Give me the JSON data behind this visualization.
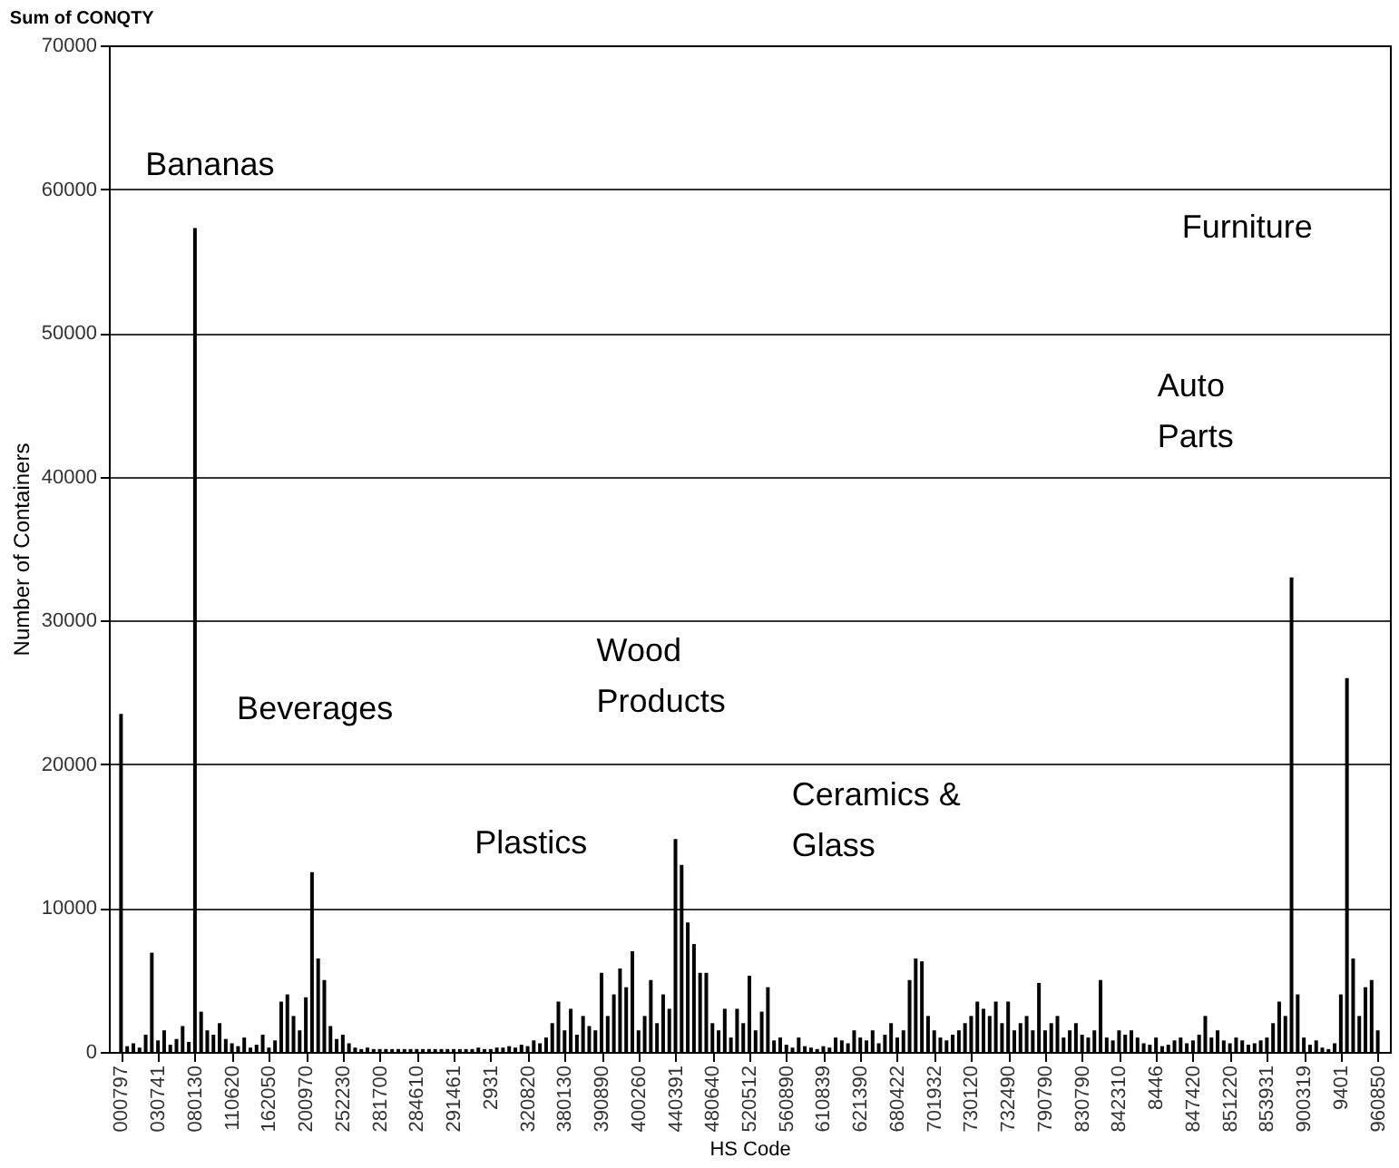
{
  "chart_data": {
    "type": "bar",
    "title": "Sum of CONQTY",
    "xlabel": "HS Code",
    "ylabel": "Number of Containers",
    "categories": [
      "000797",
      null,
      null,
      null,
      null,
      null,
      "030741",
      null,
      null,
      null,
      null,
      null,
      "080130",
      null,
      null,
      null,
      null,
      null,
      "110620",
      null,
      null,
      null,
      null,
      null,
      "162050",
      null,
      null,
      null,
      null,
      null,
      "200970",
      null,
      null,
      null,
      null,
      null,
      "252230",
      null,
      null,
      null,
      null,
      null,
      "281700",
      null,
      null,
      null,
      null,
      null,
      "284610",
      null,
      null,
      null,
      null,
      null,
      "291461",
      null,
      null,
      null,
      null,
      null,
      "2931",
      null,
      null,
      null,
      null,
      null,
      "320820",
      null,
      null,
      null,
      null,
      null,
      "380130",
      null,
      null,
      null,
      null,
      null,
      "390890",
      null,
      null,
      null,
      null,
      null,
      "400260",
      null,
      null,
      null,
      null,
      null,
      "440391",
      null,
      null,
      null,
      null,
      null,
      "480640",
      null,
      null,
      null,
      null,
      null,
      "520512",
      null,
      null,
      null,
      null,
      null,
      "560890",
      null,
      null,
      null,
      null,
      null,
      "610839",
      null,
      null,
      null,
      null,
      null,
      "621390",
      null,
      null,
      null,
      null,
      null,
      "680422",
      null,
      null,
      null,
      null,
      null,
      "701932",
      null,
      null,
      null,
      null,
      null,
      "730120",
      null,
      null,
      null,
      null,
      null,
      "732490",
      null,
      null,
      null,
      null,
      null,
      "790790",
      null,
      null,
      null,
      null,
      null,
      "830790",
      null,
      null,
      null,
      null,
      null,
      "842310",
      null,
      null,
      null,
      null,
      null,
      "8446",
      null,
      null,
      null,
      null,
      null,
      "847420",
      null,
      null,
      null,
      null,
      null,
      "851220",
      null,
      null,
      null,
      null,
      null,
      "853931",
      null,
      null,
      null,
      null,
      null,
      "900319",
      null,
      null,
      null,
      null,
      null,
      "9401",
      null,
      null,
      null,
      null,
      null,
      "960850"
    ],
    "values": [
      23500,
      400,
      600,
      300,
      1200,
      6900,
      800,
      1500,
      500,
      900,
      1800,
      700,
      57300,
      2800,
      1500,
      1200,
      2000,
      900,
      600,
      400,
      1000,
      300,
      500,
      1200,
      300,
      800,
      3500,
      4000,
      2500,
      1500,
      3800,
      12500,
      6500,
      5000,
      1800,
      900,
      1200,
      600,
      300,
      200,
      300,
      200,
      200,
      200,
      200,
      200,
      200,
      200,
      200,
      200,
      200,
      200,
      200,
      200,
      200,
      200,
      200,
      200,
      300,
      200,
      200,
      300,
      300,
      400,
      300,
      500,
      400,
      800,
      600,
      1000,
      2000,
      3500,
      1500,
      3000,
      1200,
      2500,
      1800,
      1500,
      5500,
      2500,
      4000,
      5800,
      4500,
      7000,
      1500,
      2500,
      5000,
      2000,
      4000,
      3000,
      14800,
      13000,
      9000,
      7500,
      5500,
      5500,
      2000,
      1500,
      3000,
      1000,
      3000,
      2000,
      5300,
      1500,
      2800,
      4500,
      800,
      1000,
      500,
      300,
      1000,
      400,
      300,
      200,
      400,
      300,
      1000,
      800,
      600,
      1500,
      1000,
      800,
      1500,
      600,
      1200,
      2000,
      1000,
      1500,
      5000,
      6500,
      6300,
      2500,
      1500,
      1000,
      800,
      1200,
      1500,
      2000,
      2500,
      3500,
      3000,
      2500,
      3500,
      2000,
      3500,
      1500,
      2000,
      2500,
      1500,
      4800,
      1500,
      2000,
      2500,
      1000,
      1500,
      2000,
      1200,
      1000,
      1500,
      5000,
      1000,
      800,
      1500,
      1200,
      1500,
      1000,
      600,
      500,
      1000,
      400,
      500,
      800,
      1000,
      600,
      800,
      1200,
      2500,
      1000,
      1500,
      800,
      600,
      1000,
      800,
      500,
      600,
      800,
      1000,
      2000,
      3500,
      2500,
      33000,
      4000,
      1000,
      500,
      800,
      300,
      200,
      600,
      4000,
      26000,
      6500,
      2500,
      4500,
      5000,
      1500
    ],
    "color": "#000000",
    "ylim": [
      0,
      70000
    ],
    "yticks": [
      0,
      10000,
      20000,
      30000,
      40000,
      50000,
      60000,
      70000
    ],
    "grid": "y",
    "annotations": [
      "Bananas",
      "Beverages",
      "Plastics",
      "Wood\nProducts",
      "Ceramics &\nGlass",
      "Auto\nParts",
      "Furniture"
    ]
  }
}
